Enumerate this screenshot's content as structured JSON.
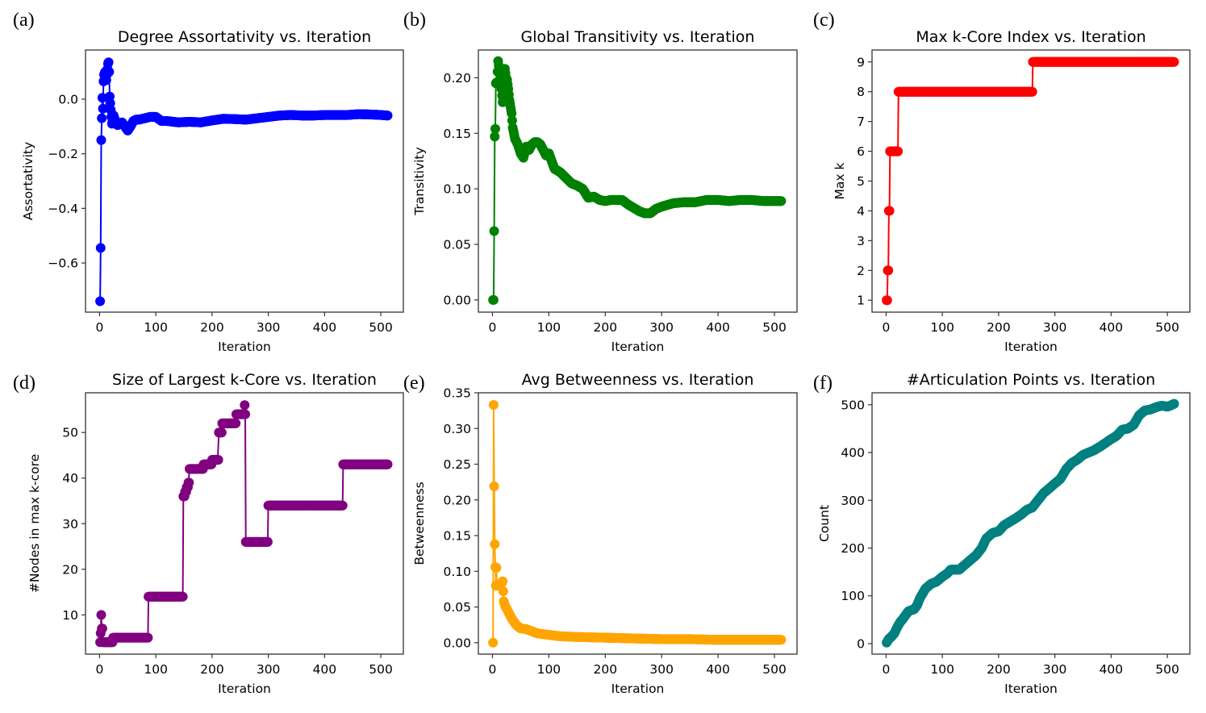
{
  "figure": {
    "panels": [
      "a",
      "b",
      "c",
      "d",
      "e",
      "f"
    ]
  },
  "chart_data": [
    {
      "id": "a",
      "panel_label": "(a)",
      "type": "line",
      "title": "Degree Assortativity vs. Iteration",
      "xlabel": "Iteration",
      "ylabel": "Assortativity",
      "color": "#0000ff",
      "markers": true,
      "xlim": [
        -25,
        540
      ],
      "ylim": [
        -0.78,
        0.18
      ],
      "xticks": [
        0,
        100,
        200,
        300,
        400,
        500
      ],
      "xtick_labels": [
        "0",
        "100",
        "200",
        "300",
        "400",
        "500"
      ],
      "yticks": [
        0.0,
        -0.2,
        -0.4,
        -0.6
      ],
      "ytick_labels": [
        "0.0",
        "−0.2",
        "−0.4",
        "−0.6"
      ],
      "grid": false,
      "legend": "none",
      "x": [
        1,
        2,
        3,
        4,
        5,
        6,
        7,
        8,
        10,
        12,
        14,
        15,
        16,
        17,
        18,
        20,
        22,
        25,
        28,
        32,
        36,
        40,
        45,
        50,
        55,
        60,
        65,
        70,
        80,
        90,
        100,
        110,
        120,
        140,
        160,
        180,
        200,
        220,
        240,
        260,
        280,
        300,
        320,
        340,
        360,
        380,
        400,
        420,
        440,
        460,
        480,
        500,
        512
      ],
      "y": [
        -0.74,
        -0.545,
        -0.15,
        -0.07,
        0.005,
        -0.035,
        0.065,
        0.09,
        0.1,
        0.07,
        0.11,
        0.13,
        0.135,
        0.1,
        0.01,
        -0.04,
        -0.09,
        -0.06,
        -0.08,
        -0.095,
        -0.09,
        -0.085,
        -0.1,
        -0.115,
        -0.1,
        -0.08,
        -0.075,
        -0.075,
        -0.07,
        -0.065,
        -0.065,
        -0.08,
        -0.08,
        -0.085,
        -0.083,
        -0.085,
        -0.078,
        -0.072,
        -0.073,
        -0.075,
        -0.07,
        -0.065,
        -0.06,
        -0.058,
        -0.06,
        -0.06,
        -0.058,
        -0.058,
        -0.058,
        -0.055,
        -0.056,
        -0.058,
        -0.06
      ]
    },
    {
      "id": "b",
      "panel_label": "(b)",
      "type": "line",
      "title": "Global Transitivity vs. Iteration",
      "xlabel": "Iteration",
      "ylabel": "Transitivity",
      "color": "#008000",
      "markers": true,
      "xlim": [
        -25,
        540
      ],
      "ylim": [
        -0.011,
        0.225
      ],
      "xticks": [
        0,
        100,
        200,
        300,
        400,
        500
      ],
      "xtick_labels": [
        "0",
        "100",
        "200",
        "300",
        "400",
        "500"
      ],
      "yticks": [
        0.0,
        0.05,
        0.1,
        0.15,
        0.2
      ],
      "ytick_labels": [
        "0.00",
        "0.05",
        "0.10",
        "0.15",
        "0.20"
      ],
      "grid": false,
      "legend": "none",
      "x": [
        1,
        2,
        3,
        4,
        5,
        6,
        8,
        10,
        12,
        14,
        16,
        18,
        20,
        22,
        24,
        26,
        28,
        30,
        32,
        34,
        36,
        40,
        45,
        50,
        55,
        60,
        65,
        70,
        75,
        80,
        85,
        90,
        95,
        100,
        105,
        110,
        120,
        130,
        140,
        150,
        160,
        170,
        180,
        190,
        200,
        210,
        220,
        230,
        240,
        250,
        260,
        270,
        280,
        290,
        300,
        320,
        340,
        360,
        380,
        400,
        420,
        440,
        460,
        480,
        500,
        512
      ],
      "y": [
        0.0,
        0.0,
        0.062,
        0.147,
        0.154,
        0.195,
        0.196,
        0.215,
        0.207,
        0.2,
        0.19,
        0.178,
        0.18,
        0.208,
        0.2,
        0.198,
        0.19,
        0.18,
        0.174,
        0.168,
        0.155,
        0.145,
        0.14,
        0.132,
        0.128,
        0.138,
        0.135,
        0.14,
        0.142,
        0.142,
        0.14,
        0.135,
        0.13,
        0.132,
        0.125,
        0.118,
        0.115,
        0.11,
        0.105,
        0.103,
        0.1,
        0.092,
        0.093,
        0.09,
        0.089,
        0.09,
        0.09,
        0.09,
        0.086,
        0.083,
        0.08,
        0.078,
        0.078,
        0.082,
        0.084,
        0.087,
        0.088,
        0.088,
        0.09,
        0.09,
        0.089,
        0.09,
        0.09,
        0.089,
        0.089,
        0.089
      ]
    },
    {
      "id": "c",
      "panel_label": "(c)",
      "type": "line",
      "title": "Max k-Core Index vs. Iteration",
      "xlabel": "Iteration",
      "ylabel": "Max k",
      "color": "#ff0000",
      "markers": true,
      "xlim": [
        -25,
        540
      ],
      "ylim": [
        0.6,
        9.4
      ],
      "xticks": [
        0,
        100,
        200,
        300,
        400,
        500
      ],
      "xtick_labels": [
        "0",
        "100",
        "200",
        "300",
        "400",
        "500"
      ],
      "yticks": [
        1,
        2,
        3,
        4,
        5,
        6,
        7,
        8,
        9
      ],
      "ytick_labels": [
        "1",
        "2",
        "3",
        "4",
        "5",
        "6",
        "7",
        "8",
        "9"
      ],
      "grid": false,
      "legend": "none",
      "x": [
        1,
        2,
        3,
        4,
        5,
        6,
        7,
        10,
        14,
        18,
        21,
        22,
        30,
        50,
        80,
        110,
        140,
        170,
        200,
        230,
        259,
        260,
        261,
        290,
        320,
        350,
        380,
        410,
        440,
        470,
        500,
        512
      ],
      "y": [
        1,
        1,
        2,
        2,
        4,
        4,
        6,
        6,
        6,
        6,
        6,
        8,
        8,
        8,
        8,
        8,
        8,
        8,
        8,
        8,
        8,
        8,
        9,
        9,
        9,
        9,
        9,
        9,
        9,
        9,
        9,
        9
      ]
    },
    {
      "id": "d",
      "panel_label": "(d)",
      "type": "line",
      "title": "Size of Largest k-Core vs. Iteration",
      "xlabel": "Iteration",
      "ylabel": "#Nodes in max k-core",
      "color": "#800080",
      "markers": true,
      "xlim": [
        -25,
        540
      ],
      "ylim": [
        1.4,
        58.7
      ],
      "xticks": [
        0,
        100,
        200,
        300,
        400,
        500
      ],
      "xtick_labels": [
        "0",
        "100",
        "200",
        "300",
        "400",
        "500"
      ],
      "yticks": [
        10,
        20,
        30,
        40,
        50
      ],
      "ytick_labels": [
        "10",
        "20",
        "30",
        "40",
        "50"
      ],
      "grid": false,
      "legend": "none",
      "x": [
        1,
        2,
        3,
        4,
        5,
        6,
        8,
        12,
        16,
        20,
        24,
        40,
        60,
        86,
        87,
        100,
        120,
        148,
        149,
        152,
        155,
        158,
        160,
        170,
        180,
        185,
        195,
        200,
        210,
        212,
        215,
        218,
        230,
        240,
        243,
        250,
        255,
        258,
        259,
        260,
        280,
        299,
        300,
        320,
        350,
        380,
        410,
        432,
        433,
        450,
        480,
        512
      ],
      "y": [
        4,
        6,
        10,
        7,
        7,
        4,
        4,
        4,
        4,
        4,
        5,
        5,
        5,
        5,
        14,
        14,
        14,
        14,
        36,
        37,
        38,
        39,
        42,
        42,
        42,
        43,
        43,
        44,
        44,
        50,
        50,
        52,
        52,
        52,
        54,
        54,
        54,
        56,
        54,
        26,
        26,
        26,
        34,
        34,
        34,
        34,
        34,
        34,
        43,
        43,
        43,
        43
      ]
    },
    {
      "id": "e",
      "panel_label": "(e)",
      "type": "line",
      "title": "Avg Betweenness vs. Iteration",
      "xlabel": "Iteration",
      "ylabel": "Betweenness",
      "color": "#ffa500",
      "markers": true,
      "xlim": [
        -25,
        540
      ],
      "ylim": [
        -0.016,
        0.35
      ],
      "xticks": [
        0,
        100,
        200,
        300,
        400,
        500
      ],
      "xtick_labels": [
        "0",
        "100",
        "200",
        "300",
        "400",
        "500"
      ],
      "yticks": [
        0.0,
        0.05,
        0.1,
        0.15,
        0.2,
        0.25,
        0.3,
        0.35
      ],
      "ytick_labels": [
        "0.00",
        "0.05",
        "0.10",
        "0.15",
        "0.20",
        "0.25",
        "0.30",
        "0.35"
      ],
      "grid": false,
      "legend": "none",
      "x": [
        1,
        2,
        3,
        4,
        5,
        6,
        7,
        8,
        10,
        14,
        18,
        20,
        22,
        25,
        30,
        35,
        40,
        45,
        50,
        60,
        70,
        80,
        90,
        100,
        120,
        150,
        200,
        250,
        300,
        350,
        400,
        450,
        500,
        512
      ],
      "y": [
        0.0,
        0.333,
        0.219,
        0.138,
        0.106,
        0.08,
        0.105,
        0.08,
        0.08,
        0.08,
        0.086,
        0.058,
        0.052,
        0.048,
        0.04,
        0.033,
        0.027,
        0.023,
        0.02,
        0.019,
        0.016,
        0.013,
        0.012,
        0.011,
        0.009,
        0.008,
        0.007,
        0.006,
        0.005,
        0.005,
        0.004,
        0.004,
        0.004,
        0.004
      ]
    },
    {
      "id": "f",
      "panel_label": "(f)",
      "type": "line",
      "title": "#Articulation Points vs. Iteration",
      "xlabel": "Iteration",
      "ylabel": "Count",
      "color": "#008080",
      "markers": true,
      "xlim": [
        -25,
        540
      ],
      "ylim": [
        -22,
        525
      ],
      "xticks": [
        0,
        100,
        200,
        300,
        400,
        500
      ],
      "xtick_labels": [
        "0",
        "100",
        "200",
        "300",
        "400",
        "500"
      ],
      "yticks": [
        0,
        100,
        200,
        300,
        400,
        500
      ],
      "ytick_labels": [
        "0",
        "100",
        "200",
        "300",
        "400",
        "500"
      ],
      "grid": false,
      "legend": "none",
      "x": [
        1,
        5,
        10,
        15,
        20,
        25,
        30,
        40,
        50,
        55,
        60,
        70,
        80,
        90,
        100,
        110,
        115,
        130,
        140,
        150,
        160,
        170,
        178,
        190,
        200,
        210,
        220,
        230,
        240,
        250,
        260,
        270,
        280,
        290,
        300,
        310,
        320,
        330,
        340,
        350,
        360,
        370,
        380,
        390,
        400,
        410,
        420,
        430,
        440,
        450,
        460,
        470,
        480,
        490,
        500,
        505,
        512
      ],
      "y": [
        2,
        10,
        15,
        22,
        35,
        45,
        52,
        68,
        72,
        80,
        95,
        115,
        125,
        130,
        140,
        148,
        155,
        155,
        165,
        175,
        185,
        200,
        220,
        232,
        235,
        248,
        255,
        262,
        270,
        280,
        285,
        300,
        315,
        325,
        335,
        345,
        365,
        378,
        385,
        395,
        400,
        405,
        412,
        420,
        428,
        435,
        448,
        450,
        458,
        478,
        488,
        490,
        495,
        498,
        496,
        498,
        502
      ]
    }
  ]
}
